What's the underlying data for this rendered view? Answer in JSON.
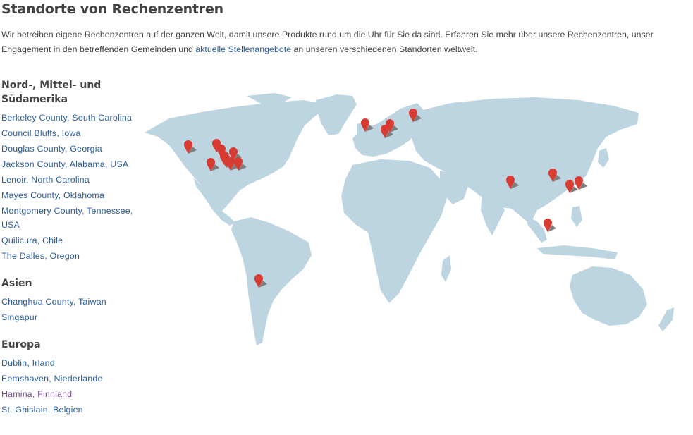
{
  "page": {
    "title": "Standorte von Rechenzentren",
    "intro_before_link": "Wir betreiben eigene Rechenzentren auf der ganzen Welt, damit unsere Produkte rund um die Uhr für Sie da sind. Erfahren Sie mehr über unsere Rechenzentren, unser Engagement in den betreffenden Gemeinden und ",
    "intro_link": "aktuelle Stellenangebote",
    "intro_after_link": " an unseren verschiedenen Standorten weltweit."
  },
  "regions": [
    {
      "heading": "Nord-, Mittel- und Südamerika",
      "locations": [
        "Berkeley County, South Carolina",
        "Council Bluffs, Iowa",
        "Douglas County, Georgia",
        "Jackson County, Alabama, USA",
        "Lenoir, North Carolina",
        "Mayes County, Oklahoma",
        "Montgomery County, Tennessee, USA",
        "Quilicura, Chile",
        "The Dalles, Oregon"
      ]
    },
    {
      "heading": "Asien",
      "locations": [
        "Changhua County, Taiwan",
        "Singapur"
      ]
    },
    {
      "heading": "Europa",
      "locations": [
        "Dublin, Irland",
        "Eemshaven, Niederlande",
        "Hamina, Finnland",
        "St. Ghislain, Belgien"
      ]
    }
  ],
  "colors": {
    "land": "#bdd4e1",
    "marker": "#d73b32",
    "marker_shadow": "#7d7d7d",
    "link": "#2a5c9e",
    "visited_link": "#7a4e9b"
  },
  "map": {
    "icon": "map-marker-icon",
    "marker_count": 19
  }
}
